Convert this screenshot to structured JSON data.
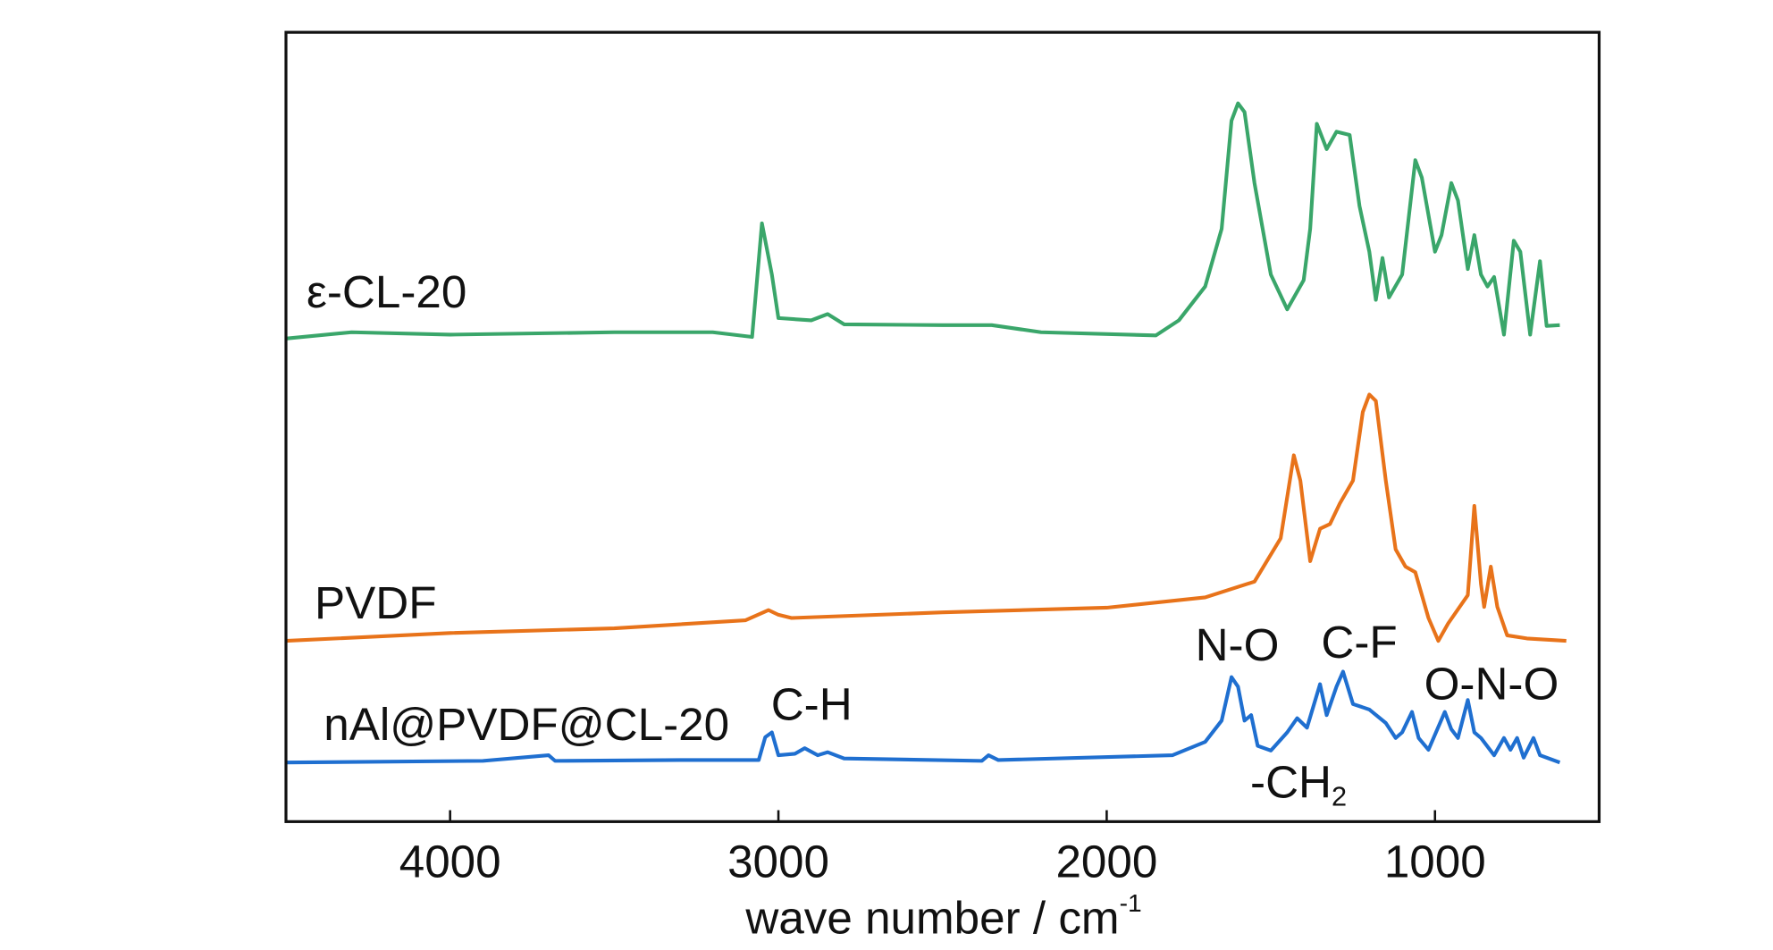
{
  "chart_data": {
    "type": "line",
    "xlabel": {
      "text": "wave number / cm",
      "sup": "-1"
    },
    "xlim": [
      4500,
      500
    ],
    "ylim": [
      0,
      100
    ],
    "xticks": [
      4000,
      3000,
      2000,
      1000
    ],
    "grid": false,
    "series": [
      {
        "name": "ε-CL-20",
        "color": "#3aa66a",
        "x": [
          4500,
          4300,
          4000,
          3500,
          3200,
          3080,
          3050,
          3020,
          3000,
          2900,
          2850,
          2800,
          2500,
          2350,
          2200,
          1850,
          1780,
          1700,
          1650,
          1620,
          1600,
          1580,
          1550,
          1500,
          1450,
          1400,
          1380,
          1360,
          1330,
          1300,
          1260,
          1230,
          1200,
          1180,
          1160,
          1140,
          1100,
          1060,
          1040,
          1000,
          980,
          950,
          930,
          900,
          880,
          860,
          840,
          820,
          790,
          760,
          740,
          710,
          680,
          660,
          620
        ],
        "values": [
          61.2,
          62.0,
          61.7,
          62.0,
          62.0,
          61.4,
          75.8,
          69.3,
          63.8,
          63.5,
          64.3,
          63.0,
          62.9,
          62.9,
          62.0,
          61.6,
          63.5,
          67.8,
          75.1,
          88.8,
          91.0,
          89.9,
          80.9,
          69.3,
          64.9,
          68.6,
          75.1,
          88.4,
          85.2,
          87.4,
          87.0,
          78.0,
          72.2,
          66.1,
          71.4,
          66.4,
          69.3,
          83.8,
          81.6,
          72.2,
          74.3,
          80.9,
          78.7,
          70.0,
          74.3,
          69.3,
          67.8,
          69.0,
          61.7,
          73.6,
          72.2,
          61.7,
          71.0,
          62.8,
          62.9
        ]
      },
      {
        "name": "PVDF",
        "color": "#e8731a",
        "x": [
          4500,
          4000,
          3500,
          3100,
          3030,
          3000,
          2960,
          2500,
          2000,
          1700,
          1550,
          1470,
          1430,
          1410,
          1380,
          1350,
          1320,
          1290,
          1250,
          1220,
          1200,
          1180,
          1150,
          1120,
          1090,
          1060,
          1020,
          990,
          960,
          900,
          880,
          860,
          850,
          830,
          810,
          780,
          720,
          600
        ],
        "values": [
          22.9,
          23.9,
          24.5,
          25.5,
          26.8,
          26.2,
          25.8,
          26.5,
          27.1,
          28.4,
          30.4,
          35.9,
          46.4,
          43.2,
          33.0,
          37.1,
          37.7,
          40.3,
          43.2,
          51.9,
          54.1,
          53.3,
          43.2,
          34.5,
          32.3,
          31.6,
          25.8,
          22.9,
          25.1,
          28.7,
          40.0,
          30.1,
          27.2,
          32.3,
          27.2,
          23.6,
          23.2,
          22.9
        ]
      },
      {
        "name": "nAl@PVDF@CL-20",
        "color": "#1f6fd0",
        "x": [
          4500,
          3900,
          3700,
          3680,
          3300,
          3060,
          3040,
          3020,
          3000,
          2950,
          2920,
          2880,
          2850,
          2800,
          2380,
          2360,
          2330,
          1800,
          1700,
          1650,
          1620,
          1600,
          1580,
          1560,
          1540,
          1500,
          1450,
          1420,
          1390,
          1350,
          1330,
          1300,
          1280,
          1250,
          1200,
          1150,
          1120,
          1100,
          1070,
          1050,
          1020,
          970,
          950,
          930,
          900,
          880,
          860,
          820,
          790,
          770,
          750,
          730,
          700,
          680,
          620
        ],
        "values": [
          7.5,
          7.7,
          8.4,
          7.7,
          7.8,
          7.8,
          10.7,
          11.3,
          8.4,
          8.6,
          9.3,
          8.4,
          8.8,
          8.0,
          7.7,
          8.4,
          7.8,
          8.4,
          10.1,
          12.8,
          18.3,
          17.1,
          12.8,
          13.5,
          9.6,
          9.0,
          11.3,
          13.1,
          11.9,
          17.4,
          13.5,
          17.1,
          19.0,
          14.9,
          14.2,
          12.5,
          10.6,
          11.3,
          13.9,
          10.6,
          9.1,
          13.9,
          11.7,
          10.6,
          15.4,
          11.3,
          10.6,
          8.4,
          10.6,
          9.1,
          10.6,
          8.1,
          10.6,
          8.4,
          7.5
        ]
      }
    ],
    "annotations": [
      {
        "text": "C-H"
      },
      {
        "text": "N-O"
      },
      {
        "text": "C-F"
      },
      {
        "text": "O-N-O"
      },
      {
        "text": "-CH",
        "sub": "2"
      }
    ]
  }
}
